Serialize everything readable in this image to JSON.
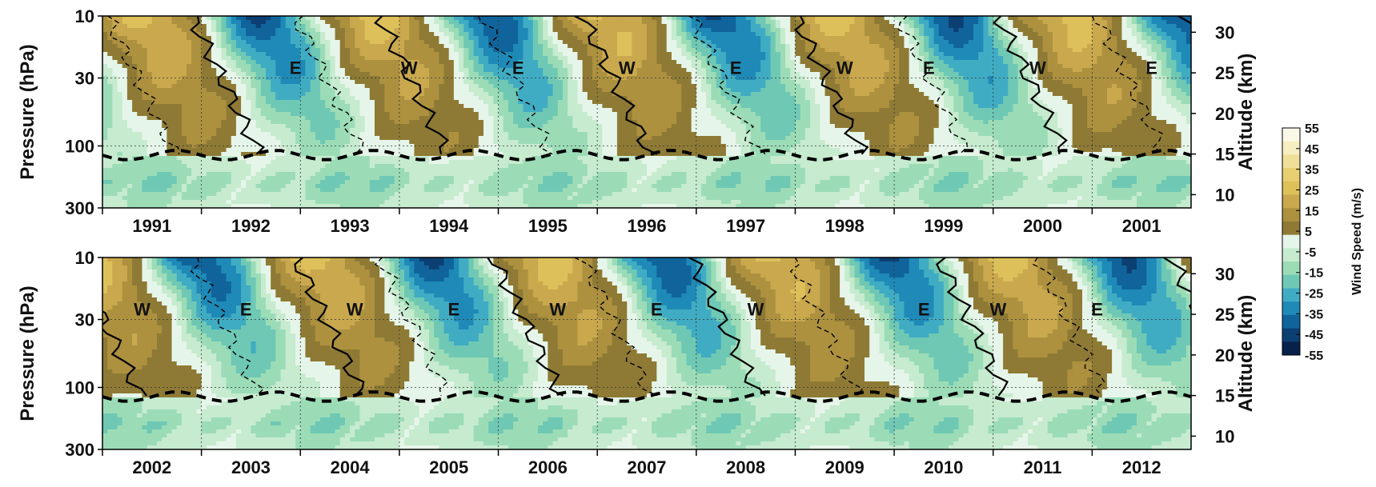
{
  "chart_data": {
    "type": "heatmap",
    "shared": {
      "ylabel_left": "Pressure (hPa)",
      "ylabel_right": "Altitude (km)",
      "y_ticks_pressure": [
        "10",
        "30",
        "100",
        "300"
      ],
      "y_ticks_pressure_values": [
        10,
        30,
        100,
        300
      ],
      "y_ticks_altitude": [
        "30",
        "25",
        "20",
        "15",
        "10"
      ],
      "y_ticks_altitude_values": [
        30,
        25,
        20,
        15,
        10
      ],
      "ylim_pressure": [
        300,
        10
      ],
      "grid": true,
      "colorbar": {
        "label": "Wind Speed (m/s)",
        "ticks": [
          "55",
          "45",
          "35",
          "25",
          "15",
          "5",
          "-5",
          "-15",
          "-25",
          "-35",
          "-45",
          "-55"
        ],
        "tick_values": [
          55,
          45,
          35,
          25,
          15,
          5,
          -5,
          -15,
          -25,
          -35,
          -45,
          -55
        ],
        "colors": [
          "#fbf8e8",
          "#f6eec0",
          "#efdf98",
          "#e8cf72",
          "#ddc05a",
          "#c9a84e",
          "#ad913f",
          "#8e7a35",
          "#e6f5e9",
          "#c6ebcf",
          "#9bdcb7",
          "#6ec8b4",
          "#40acc4",
          "#1f8ab7",
          "#10649b",
          "#0c3f72",
          "#08214a"
        ],
        "range": [
          -55,
          55
        ]
      }
    },
    "panels": [
      {
        "years": [
          "1991",
          "1992",
          "1993",
          "1994",
          "1995",
          "1996",
          "1997",
          "1998",
          "1999",
          "2000",
          "2001"
        ],
        "phases": [
          {
            "label": "E",
            "t": 1.95,
            "p": 25
          },
          {
            "label": "W",
            "t": 3.1,
            "p": 25
          },
          {
            "label": "E",
            "t": 4.2,
            "p": 25
          },
          {
            "label": "W",
            "t": 5.3,
            "p": 25
          },
          {
            "label": "E",
            "t": 6.4,
            "p": 25
          },
          {
            "label": "W",
            "t": 7.5,
            "p": 25
          },
          {
            "label": "E",
            "t": 8.35,
            "p": 25
          },
          {
            "label": "W",
            "t": 9.45,
            "p": 25
          },
          {
            "label": "E",
            "t": 10.6,
            "p": 25
          }
        ],
        "westerly_onsets": [
          0.9,
          2.8,
          4.85,
          7.0,
          9.05,
          10.95
        ],
        "easterly_onsets": [
          0.05,
          1.95,
          3.85,
          5.95,
          8.05,
          10.05
        ]
      },
      {
        "years": [
          "2002",
          "2003",
          "2004",
          "2005",
          "2006",
          "2007",
          "2008",
          "2009",
          "2010",
          "2011",
          "2012"
        ],
        "phases": [
          {
            "label": "W",
            "t": 0.4,
            "p": 25
          },
          {
            "label": "E",
            "t": 1.45,
            "p": 25
          },
          {
            "label": "W",
            "t": 2.55,
            "p": 25
          },
          {
            "label": "E",
            "t": 3.55,
            "p": 25
          },
          {
            "label": "W",
            "t": 4.6,
            "p": 25
          },
          {
            "label": "E",
            "t": 5.6,
            "p": 25
          },
          {
            "label": "W",
            "t": 6.6,
            "p": 25
          },
          {
            "label": "E",
            "t": 8.3,
            "p": 25
          },
          {
            "label": "W",
            "t": 9.05,
            "p": 25
          },
          {
            "label": "E",
            "t": 10.05,
            "p": 25
          }
        ],
        "westerly_onsets": [
          -0.3,
          1.95,
          3.95,
          5.95,
          8.45,
          10.8
        ],
        "easterly_onsets": [
          0.9,
          2.8,
          4.85,
          6.95,
          9.45
        ]
      }
    ]
  }
}
